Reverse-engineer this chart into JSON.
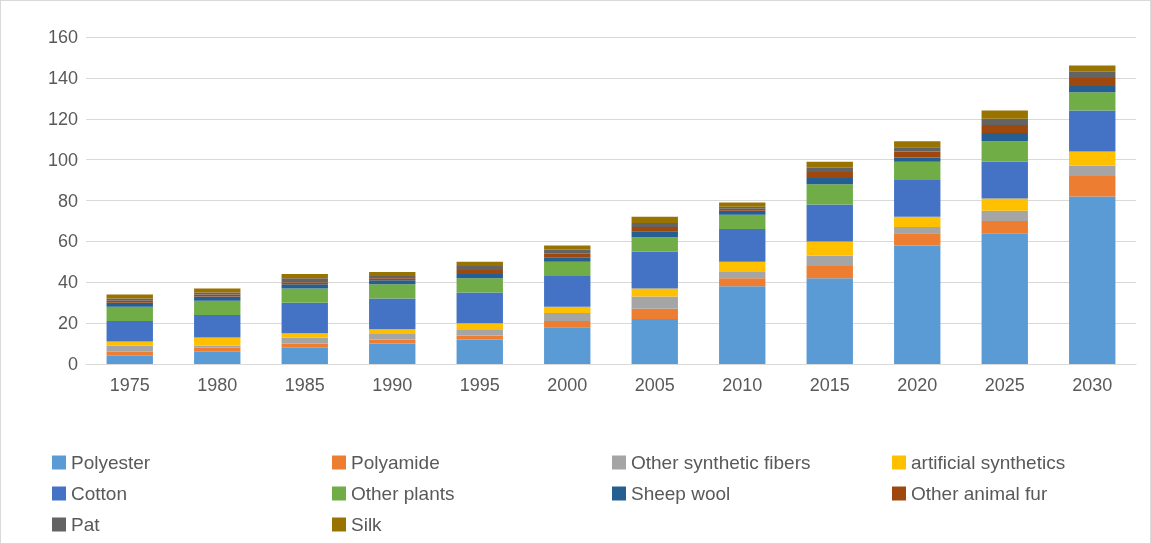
{
  "chart_data": {
    "type": "bar",
    "stacked": true,
    "categories": [
      "1975",
      "1980",
      "1985",
      "1990",
      "1995",
      "2000",
      "2005",
      "2010",
      "2015",
      "2020",
      "2025",
      "2030"
    ],
    "series": [
      {
        "name": "Polyester",
        "color": "#5b9bd5",
        "values": [
          4,
          6,
          8,
          10,
          12,
          18,
          22,
          38,
          42,
          58,
          64,
          82
        ]
      },
      {
        "name": "Polyamide",
        "color": "#ed7d31",
        "values": [
          2,
          2,
          2,
          2,
          2,
          3,
          5,
          4,
          6,
          6,
          6,
          10
        ]
      },
      {
        "name": "Other synthetic fibers",
        "color": "#a5a5a5",
        "values": [
          3,
          1,
          3,
          3,
          3,
          4,
          6,
          3,
          5,
          3,
          5,
          5
        ]
      },
      {
        "name": "artificial synthetics",
        "color": "#ffc000",
        "values": [
          2,
          4,
          2,
          2,
          3,
          3,
          4,
          5,
          7,
          5,
          6,
          7
        ]
      },
      {
        "name": "Cotton",
        "color": "#4472c4",
        "values": [
          10,
          11,
          15,
          15,
          15,
          15,
          18,
          16,
          18,
          18,
          18,
          20
        ]
      },
      {
        "name": "Other plants",
        "color": "#70ad47",
        "values": [
          7,
          7,
          7,
          7,
          7,
          7,
          7,
          7,
          10,
          9,
          10,
          9
        ]
      },
      {
        "name": "Sheep wool",
        "color": "#255e91",
        "values": [
          2,
          2,
          2,
          2,
          2,
          2,
          3,
          2,
          3,
          2,
          4,
          3
        ]
      },
      {
        "name": "Other animal fur",
        "color": "#9e480e",
        "values": [
          1,
          1,
          1,
          1,
          2,
          2,
          2,
          1,
          3,
          3,
          4,
          4
        ]
      },
      {
        "name": "Pat",
        "color": "#636363",
        "values": [
          1,
          1,
          2,
          1,
          2,
          2,
          2,
          1,
          2,
          2,
          3,
          3
        ]
      },
      {
        "name": "Silk",
        "color": "#997300",
        "values": [
          2,
          2,
          2,
          2,
          2,
          2,
          3,
          2,
          3,
          3,
          4,
          3
        ]
      }
    ],
    "ylim": [
      0,
      160
    ],
    "yticks": [
      0,
      20,
      40,
      60,
      80,
      100,
      120,
      140,
      160
    ],
    "grid": "y",
    "legend": "bottom"
  }
}
